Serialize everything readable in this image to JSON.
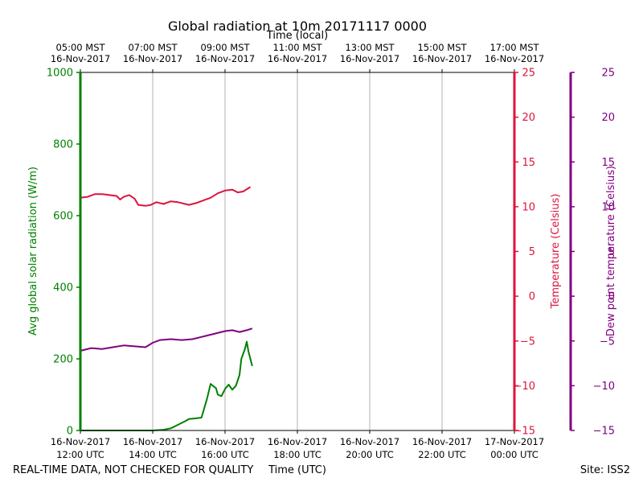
{
  "chart_data": {
    "type": "line",
    "title": "Global radiation at 10m 20171117 0000",
    "top_axis_title": "Time (local)",
    "bottom_axis_title": "Time (UTC)",
    "footer_left": "REAL-TIME DATA, NOT CHECKED FOR QUALITY",
    "footer_right": "Site: ISS2",
    "x_range_utc_hours": [
      12,
      24
    ],
    "x_ticks_utc": [
      {
        "h": 12,
        "l1": "16-Nov-2017",
        "l2": "12:00 UTC"
      },
      {
        "h": 14,
        "l1": "16-Nov-2017",
        "l2": "14:00 UTC"
      },
      {
        "h": 16,
        "l1": "16-Nov-2017",
        "l2": "16:00 UTC"
      },
      {
        "h": 18,
        "l1": "16-Nov-2017",
        "l2": "18:00 UTC"
      },
      {
        "h": 20,
        "l1": "16-Nov-2017",
        "l2": "20:00 UTC"
      },
      {
        "h": 22,
        "l1": "16-Nov-2017",
        "l2": "22:00 UTC"
      },
      {
        "h": 24,
        "l1": "17-Nov-2017",
        "l2": "00:00 UTC"
      }
    ],
    "x_ticks_local": [
      {
        "h": 12,
        "l1": "05:00 MST",
        "l2": "16-Nov-2017"
      },
      {
        "h": 14,
        "l1": "07:00 MST",
        "l2": "16-Nov-2017"
      },
      {
        "h": 16,
        "l1": "09:00 MST",
        "l2": "16-Nov-2017"
      },
      {
        "h": 18,
        "l1": "11:00 MST",
        "l2": "16-Nov-2017"
      },
      {
        "h": 20,
        "l1": "13:00 MST",
        "l2": "16-Nov-2017"
      },
      {
        "h": 22,
        "l1": "15:00 MST",
        "l2": "16-Nov-2017"
      },
      {
        "h": 24,
        "l1": "17:00 MST",
        "l2": "16-Nov-2017"
      }
    ],
    "grid_x": true,
    "axes": {
      "left": {
        "label": "Avg global solar radiation (W/m)",
        "ylim": [
          0,
          1000
        ],
        "ticks": [
          0,
          200,
          400,
          600,
          800,
          1000
        ],
        "color": "#008000"
      },
      "right1": {
        "label": "Temperature (Celsius)",
        "ylim": [
          -15,
          25
        ],
        "ticks": [
          -15,
          -10,
          -5,
          0,
          5,
          10,
          15,
          20,
          25
        ],
        "color": "#dc143c"
      },
      "right2": {
        "label": "Dew point temperature (Celsius)",
        "ylim": [
          -15,
          25
        ],
        "ticks": [
          -15,
          -10,
          -5,
          0,
          5,
          10,
          15,
          20,
          25
        ],
        "color": "#800080"
      }
    },
    "series": [
      {
        "name": "Avg global solar radiation",
        "axis": "left",
        "color": "#008000",
        "points": [
          [
            12.0,
            0
          ],
          [
            13.0,
            0
          ],
          [
            14.0,
            0
          ],
          [
            14.3,
            2
          ],
          [
            14.5,
            6
          ],
          [
            14.7,
            16
          ],
          [
            14.9,
            26
          ],
          [
            15.0,
            32
          ],
          [
            15.2,
            34
          ],
          [
            15.35,
            36
          ],
          [
            15.5,
            88
          ],
          [
            15.6,
            130
          ],
          [
            15.7,
            122
          ],
          [
            15.75,
            118
          ],
          [
            15.8,
            100
          ],
          [
            15.9,
            96
          ],
          [
            16.0,
            116
          ],
          [
            16.1,
            128
          ],
          [
            16.2,
            114
          ],
          [
            16.3,
            125
          ],
          [
            16.4,
            155
          ],
          [
            16.45,
            200
          ],
          [
            16.55,
            228
          ],
          [
            16.6,
            248
          ],
          [
            16.65,
            220
          ],
          [
            16.75,
            180
          ]
        ]
      },
      {
        "name": "Temperature",
        "axis": "right1",
        "color": "#dc143c",
        "points": [
          [
            12.0,
            11
          ],
          [
            12.2,
            11.1
          ],
          [
            12.4,
            11.4
          ],
          [
            12.6,
            11.4
          ],
          [
            12.8,
            11.3
          ],
          [
            13.0,
            11.2
          ],
          [
            13.1,
            10.8
          ],
          [
            13.2,
            11.1
          ],
          [
            13.35,
            11.3
          ],
          [
            13.5,
            10.9
          ],
          [
            13.6,
            10.2
          ],
          [
            13.8,
            10.1
          ],
          [
            13.95,
            10.2
          ],
          [
            14.1,
            10.5
          ],
          [
            14.3,
            10.3
          ],
          [
            14.5,
            10.6
          ],
          [
            14.7,
            10.5
          ],
          [
            14.9,
            10.3
          ],
          [
            15.0,
            10.2
          ],
          [
            15.2,
            10.4
          ],
          [
            15.4,
            10.7
          ],
          [
            15.6,
            11.0
          ],
          [
            15.8,
            11.5
          ],
          [
            16.0,
            11.8
          ],
          [
            16.2,
            11.9
          ],
          [
            16.35,
            11.6
          ],
          [
            16.5,
            11.7
          ],
          [
            16.7,
            12.2
          ]
        ]
      },
      {
        "name": "Dew point temperature",
        "axis": "right2",
        "color": "#800080",
        "points": [
          [
            12.0,
            -6.1
          ],
          [
            12.3,
            -5.8
          ],
          [
            12.6,
            -5.9
          ],
          [
            12.9,
            -5.7
          ],
          [
            13.2,
            -5.5
          ],
          [
            13.5,
            -5.6
          ],
          [
            13.8,
            -5.7
          ],
          [
            14.0,
            -5.2
          ],
          [
            14.2,
            -4.9
          ],
          [
            14.5,
            -4.8
          ],
          [
            14.8,
            -4.9
          ],
          [
            15.1,
            -4.8
          ],
          [
            15.4,
            -4.5
          ],
          [
            15.7,
            -4.2
          ],
          [
            16.0,
            -3.9
          ],
          [
            16.2,
            -3.8
          ],
          [
            16.4,
            -4.0
          ],
          [
            16.6,
            -3.8
          ],
          [
            16.75,
            -3.6
          ]
        ]
      }
    ]
  }
}
